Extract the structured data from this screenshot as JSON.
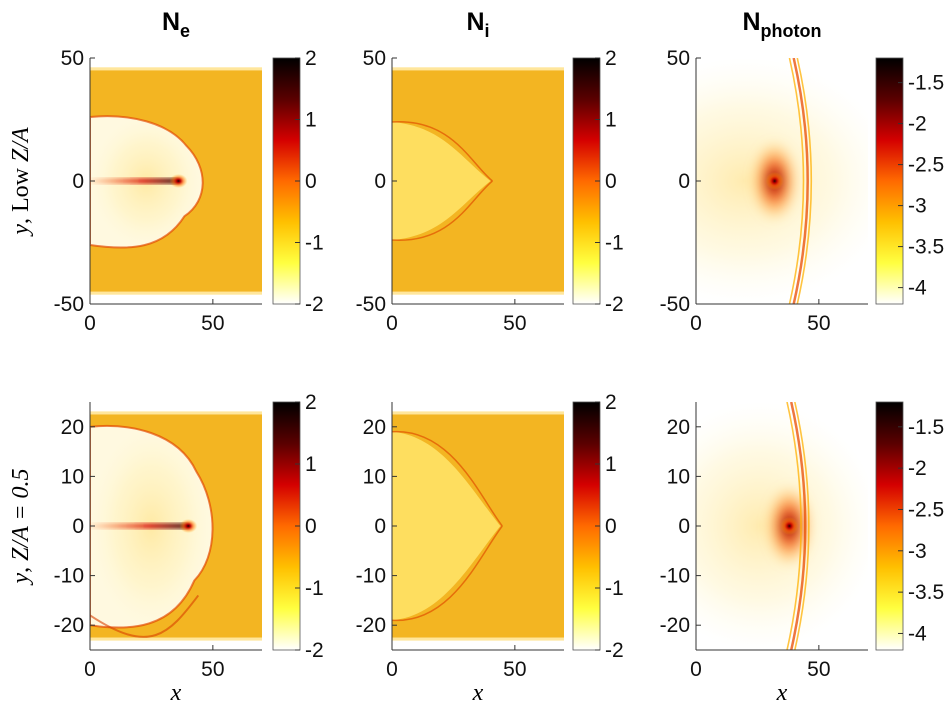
{
  "figure": {
    "row_labels": [
      {
        "italic": "y",
        "rest": ", Low ",
        "math": "Z/A"
      },
      {
        "italic": "y",
        "rest": ", ",
        "math": "Z/A = 0.5"
      }
    ],
    "x_label": "x"
  },
  "chart_data": [
    {
      "type": "heatmap",
      "row": 0,
      "col": 0,
      "title_main": "N",
      "title_sub": "e",
      "x_ticks": [
        0,
        50
      ],
      "y_ticks": [
        -50,
        0,
        50
      ],
      "colorbar_ticks": [
        "-2",
        "-1",
        "0",
        "1",
        "2"
      ],
      "xlim": [
        0,
        70
      ],
      "ylim": [
        -50,
        50
      ],
      "clim": [
        -2,
        2
      ]
    },
    {
      "type": "heatmap",
      "row": 0,
      "col": 1,
      "title_main": "N",
      "title_sub": "i",
      "x_ticks": [
        0,
        50
      ],
      "y_ticks": [
        -50,
        0,
        50
      ],
      "colorbar_ticks": [
        "-2",
        "-1",
        "0",
        "1",
        "2"
      ],
      "xlim": [
        0,
        70
      ],
      "ylim": [
        -50,
        50
      ],
      "clim": [
        -2,
        2
      ]
    },
    {
      "type": "heatmap",
      "row": 0,
      "col": 2,
      "title_main": "N",
      "title_sub": "photon",
      "x_ticks": [
        0,
        50
      ],
      "y_ticks": [
        -50,
        0,
        50
      ],
      "colorbar_ticks": [
        "-1.5",
        "-2",
        "-2.5",
        "-3",
        "-3.5",
        "-4"
      ],
      "xlim": [
        0,
        70
      ],
      "ylim": [
        -50,
        50
      ],
      "clim": [
        -4.2,
        -1.2
      ]
    },
    {
      "type": "heatmap",
      "row": 1,
      "col": 0,
      "x_ticks": [
        0,
        50
      ],
      "y_ticks": [
        -20,
        -10,
        0,
        10,
        20
      ],
      "colorbar_ticks": [
        "-2",
        "-1",
        "0",
        "1",
        "2"
      ],
      "xlim": [
        0,
        70
      ],
      "ylim": [
        -25,
        25
      ],
      "clim": [
        -2,
        2
      ]
    },
    {
      "type": "heatmap",
      "row": 1,
      "col": 1,
      "x_ticks": [
        0,
        50
      ],
      "y_ticks": [
        -20,
        -10,
        0,
        10,
        20
      ],
      "colorbar_ticks": [
        "-2",
        "-1",
        "0",
        "1",
        "2"
      ],
      "xlim": [
        0,
        70
      ],
      "ylim": [
        -25,
        25
      ],
      "clim": [
        -2,
        2
      ]
    },
    {
      "type": "heatmap",
      "row": 1,
      "col": 2,
      "x_ticks": [
        0,
        50
      ],
      "y_ticks": [
        -20,
        -10,
        0,
        10,
        20
      ],
      "colorbar_ticks": [
        "-1.5",
        "-2",
        "-2.5",
        "-3",
        "-3.5",
        "-4"
      ],
      "xlim": [
        0,
        70
      ],
      "ylim": [
        -25,
        25
      ],
      "clim": [
        -4.2,
        -1.2
      ]
    }
  ],
  "colors": {
    "background_field": "#f3b522",
    "colormap": [
      "#ffffff",
      "#ffff40",
      "#ffc000",
      "#ff6a00",
      "#d40000",
      "#5a0000",
      "#000000"
    ]
  }
}
